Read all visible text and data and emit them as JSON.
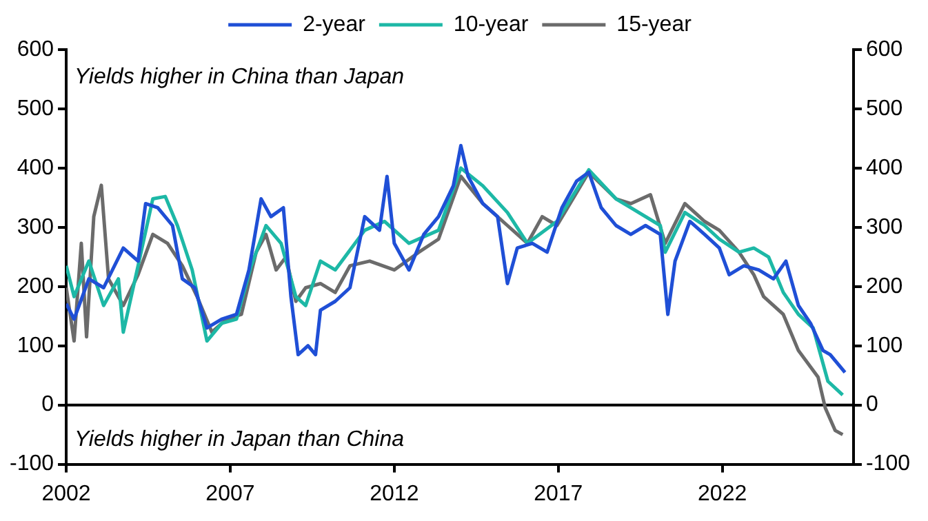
{
  "chart_data": {
    "type": "line",
    "xlim": [
      2002,
      2026
    ],
    "xticks": [
      2002,
      2007,
      2012,
      2017,
      2022
    ],
    "ylim": [
      -100,
      600
    ],
    "yticks": [
      -100,
      0,
      100,
      200,
      300,
      400,
      500,
      600
    ],
    "y2lim": [
      -100,
      600
    ],
    "y2ticks": [
      -100,
      0,
      100,
      200,
      300,
      400,
      500,
      600
    ],
    "grid": false,
    "legend": "top",
    "marker": "none",
    "line_style": "solid",
    "annotations": [
      "Yields higher in China than Japan",
      "Yields higher in Japan than China"
    ],
    "ref_lines": [
      {
        "axis": "y",
        "value": 0,
        "color": "#000000"
      }
    ],
    "series": [
      {
        "name": "2-year",
        "color": "#1f4fd6",
        "x": [
          2002.0,
          2002.24,
          2002.69,
          2003.14,
          2003.74,
          2004.19,
          2004.42,
          2004.79,
          2005.24,
          2005.54,
          2005.92,
          2006.29,
          2006.74,
          2007.19,
          2007.57,
          2007.94,
          2008.24,
          2008.62,
          2008.85,
          2009.07,
          2009.37,
          2009.6,
          2009.75,
          2010.2,
          2010.65,
          2011.1,
          2011.55,
          2011.78,
          2012.0,
          2012.45,
          2012.9,
          2013.35,
          2013.8,
          2014.03,
          2014.25,
          2014.7,
          2015.15,
          2015.45,
          2015.75,
          2016.21,
          2016.66,
          2017.11,
          2017.56,
          2017.93,
          2018.31,
          2018.76,
          2019.21,
          2019.66,
          2020.11,
          2020.34,
          2020.56,
          2021.01,
          2021.46,
          2021.91,
          2022.21,
          2022.66,
          2023.11,
          2023.56,
          2023.94,
          2024.32,
          2024.69,
          2025.07,
          2025.29,
          2025.74
        ],
        "values": [
          171,
          145,
          213,
          198,
          265,
          243,
          340,
          333,
          303,
          213,
          198,
          130,
          145,
          153,
          228,
          348,
          318,
          333,
          183,
          85,
          100,
          85,
          160,
          175,
          198,
          318,
          295,
          386,
          273,
          228,
          288,
          318,
          370,
          438,
          386,
          340,
          318,
          205,
          265,
          273,
          258,
          333,
          378,
          393,
          333,
          303,
          288,
          303,
          288,
          153,
          243,
          310,
          288,
          265,
          220,
          235,
          228,
          213,
          243,
          168,
          138,
          92,
          85,
          55
        ]
      },
      {
        "name": "10-year",
        "color": "#1db8a6",
        "x": [
          2002.0,
          2002.24,
          2002.69,
          2003.14,
          2003.59,
          2003.74,
          2004.19,
          2004.64,
          2005.02,
          2005.39,
          2005.84,
          2006.29,
          2006.74,
          2007.19,
          2007.64,
          2008.09,
          2008.55,
          2009.0,
          2009.3,
          2009.75,
          2010.2,
          2011.1,
          2011.7,
          2012.45,
          2013.35,
          2014.03,
          2014.7,
          2015.45,
          2016.06,
          2016.96,
          2017.93,
          2018.76,
          2019.21,
          2020.11,
          2020.26,
          2020.86,
          2021.46,
          2021.91,
          2022.51,
          2022.96,
          2023.41,
          2023.86,
          2024.32,
          2024.77,
          2025.22,
          2025.67
        ],
        "values": [
          235,
          183,
          243,
          168,
          213,
          123,
          235,
          348,
          352,
          303,
          228,
          108,
          138,
          145,
          235,
          303,
          273,
          183,
          168,
          243,
          228,
          295,
          310,
          273,
          295,
          400,
          370,
          325,
          273,
          310,
          397,
          348,
          333,
          303,
          258,
          325,
          303,
          280,
          258,
          265,
          250,
          190,
          153,
          130,
          40,
          17
        ]
      },
      {
        "name": "15-year",
        "color": "#6b6b6b",
        "x": [
          2002.0,
          2002.24,
          2002.46,
          2002.62,
          2002.84,
          2003.07,
          2003.29,
          2003.74,
          2004.19,
          2004.64,
          2005.09,
          2005.54,
          2005.99,
          2006.44,
          2006.89,
          2007.34,
          2007.79,
          2008.09,
          2008.4,
          2008.7,
          2009.0,
          2009.3,
          2009.75,
          2010.2,
          2010.65,
          2011.25,
          2012.0,
          2012.75,
          2013.35,
          2014.03,
          2014.7,
          2015.45,
          2016.06,
          2016.51,
          2016.96,
          2017.93,
          2018.76,
          2019.21,
          2019.81,
          2020.26,
          2020.86,
          2021.46,
          2021.91,
          2022.51,
          2022.96,
          2023.26,
          2023.86,
          2024.32,
          2024.92,
          2025.14,
          2025.44,
          2025.67
        ],
        "values": [
          198,
          108,
          273,
          115,
          318,
          371,
          213,
          168,
          220,
          288,
          273,
          235,
          183,
          123,
          145,
          153,
          258,
          288,
          228,
          250,
          175,
          198,
          205,
          190,
          235,
          243,
          228,
          258,
          280,
          386,
          340,
          303,
          273,
          318,
          303,
          393,
          348,
          340,
          355,
          273,
          340,
          310,
          295,
          258,
          220,
          183,
          153,
          92,
          47,
          -5,
          -43,
          -50
        ]
      }
    ]
  }
}
